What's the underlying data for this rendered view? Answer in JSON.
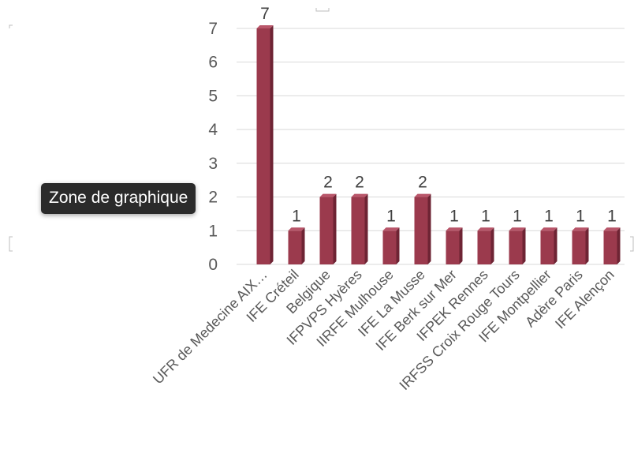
{
  "tooltip": {
    "text": "Zone de graphique"
  },
  "chart_data": {
    "type": "bar",
    "title": "",
    "xlabel": "",
    "ylabel": "",
    "ylim": [
      0,
      7
    ],
    "yticks": [
      0,
      1,
      2,
      3,
      4,
      5,
      6,
      7
    ],
    "grid": true,
    "bar_color": "#9b3a4d",
    "categories": [
      "UFR de Medecine AIX…",
      "IFE Créteil",
      "Belgique",
      "IFPVPS Hyères",
      "IIRFE Mulhouse",
      "IFE La Musse",
      "IFE Berk sur Mer",
      "IFPEK Rennes",
      "IRFSS Croix Rouge Tours",
      "IFE Montpellier",
      "Adère Paris",
      "IFE Alençon"
    ],
    "values": [
      7,
      1,
      2,
      2,
      1,
      2,
      1,
      1,
      1,
      1,
      1,
      1
    ]
  }
}
